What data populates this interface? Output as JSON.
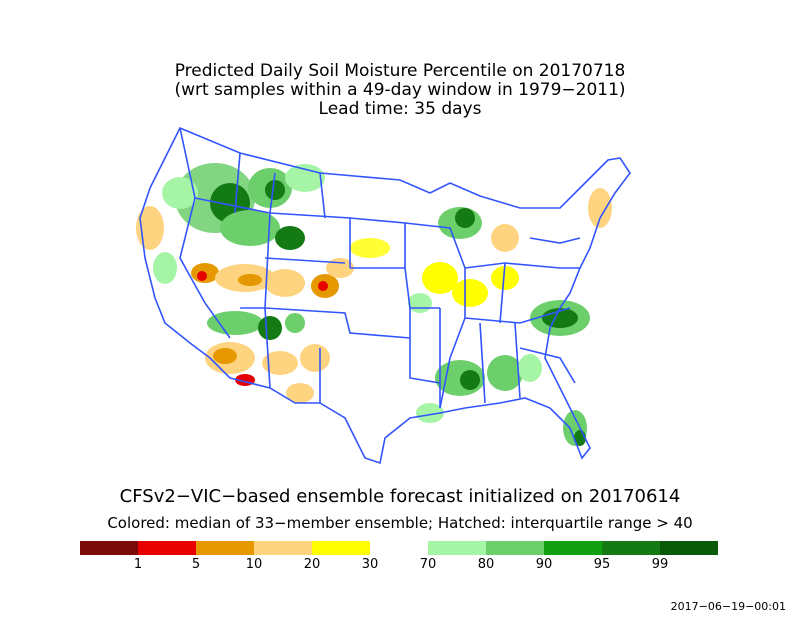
{
  "title_lines": [
    "Predicted Daily Soil Moisture Percentile on 20170718",
    "(wrt samples within a 49-day window in 1979−2011)",
    "Lead time: 35 days"
  ],
  "subtitle": "CFSv2−VIC−based ensemble forecast initialized on 20170614",
  "note": "Colored: median of 33−member ensemble; Hatched: interquartile range > 40",
  "timestamp": "2017−06−19−00:01",
  "legend": {
    "colors": [
      "#7b0a0a",
      "#e60000",
      "#e69800",
      "#ffd480",
      "#ffff00",
      "#ffffff",
      "#a6f5a6",
      "#6ccf6c",
      "#0f9f0f",
      "#147a14",
      "#0a5a0a"
    ],
    "labels": [
      "1",
      "5",
      "10",
      "20",
      "30",
      "70",
      "80",
      "90",
      "95",
      "99"
    ]
  },
  "map": {
    "outline_color": "#3355ff"
  }
}
